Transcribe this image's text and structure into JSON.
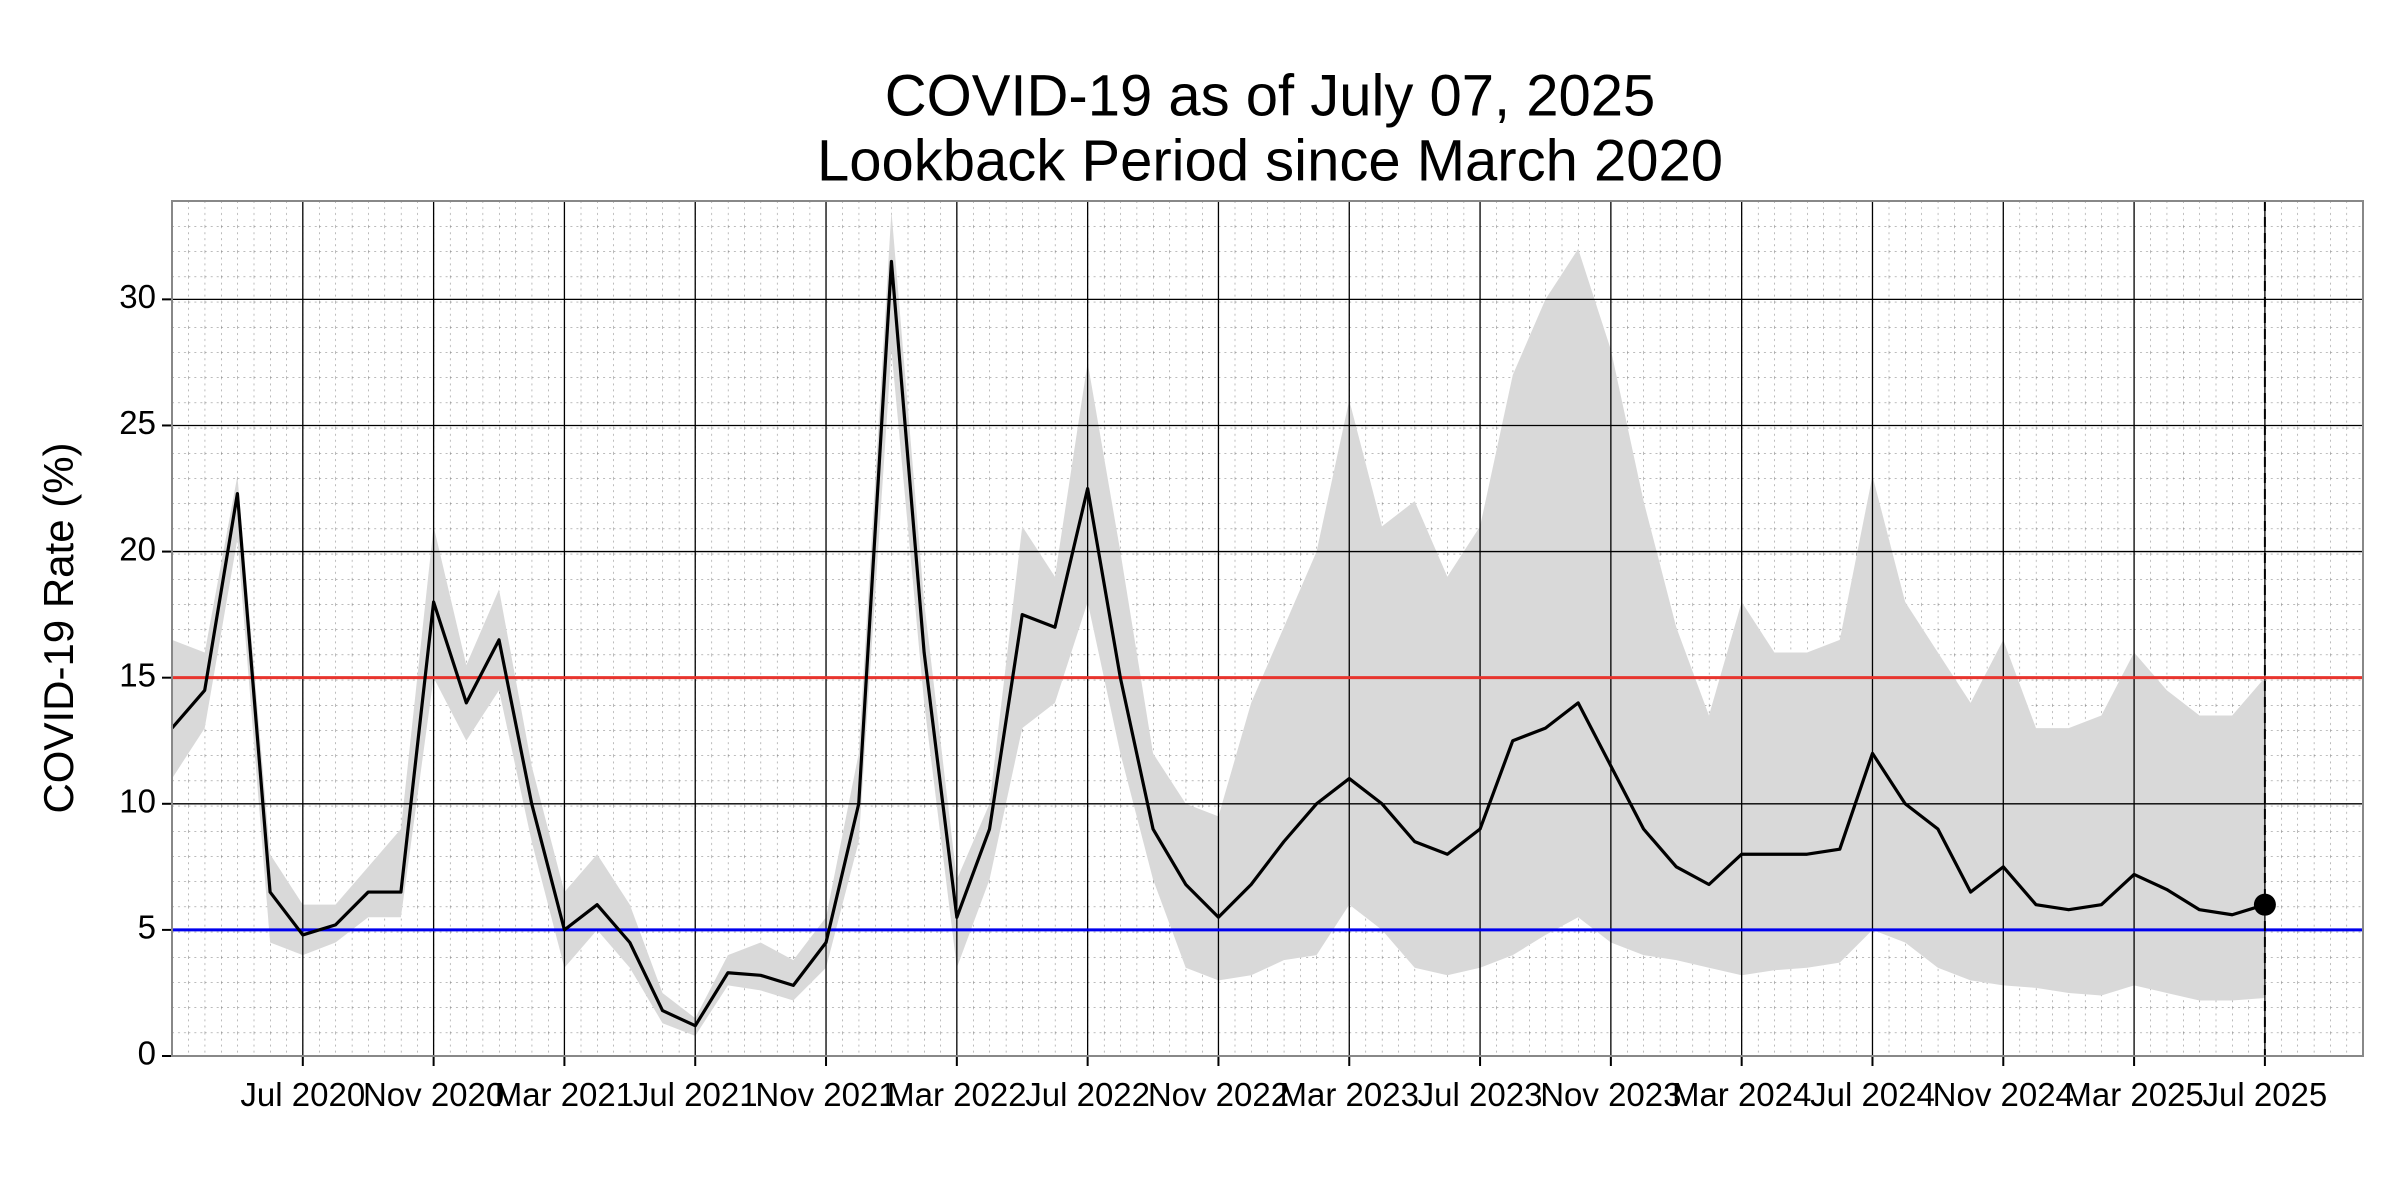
{
  "chart_data": {
    "type": "line",
    "title": "COVID-19 as of July 07, 2025",
    "subtitle": "Lookback Period since March 2020",
    "y_label": "COVID-19 Rate (%)",
    "x": [
      "2020-03",
      "2020-04",
      "2020-05",
      "2020-06",
      "2020-07",
      "2020-08",
      "2020-09",
      "2020-10",
      "2020-11",
      "2020-12",
      "2021-01",
      "2021-02",
      "2021-03",
      "2021-04",
      "2021-05",
      "2021-06",
      "2021-07",
      "2021-08",
      "2021-09",
      "2021-10",
      "2021-11",
      "2021-12",
      "2022-01",
      "2022-02",
      "2022-03",
      "2022-04",
      "2022-05",
      "2022-06",
      "2022-07",
      "2022-08",
      "2022-09",
      "2022-10",
      "2022-11",
      "2022-12",
      "2023-01",
      "2023-02",
      "2023-03",
      "2023-04",
      "2023-05",
      "2023-06",
      "2023-07",
      "2023-08",
      "2023-09",
      "2023-10",
      "2023-11",
      "2023-12",
      "2024-01",
      "2024-02",
      "2024-03",
      "2024-04",
      "2024-05",
      "2024-06",
      "2024-07",
      "2024-08",
      "2024-09",
      "2024-10",
      "2024-11",
      "2024-12",
      "2025-01",
      "2025-02",
      "2025-03",
      "2025-04",
      "2025-05",
      "2025-06",
      "2025-07"
    ],
    "values": [
      13,
      14.5,
      22.3,
      6.5,
      4.8,
      5.2,
      6.5,
      6.5,
      18,
      14,
      16.5,
      10,
      5,
      6,
      4.5,
      1.8,
      1.2,
      3.3,
      3.2,
      2.8,
      4.5,
      10,
      31.5,
      16,
      5.5,
      9,
      17.5,
      17,
      22.5,
      15,
      9,
      6.8,
      5.5,
      6.8,
      8.5,
      10,
      11,
      10,
      8.5,
      8,
      9,
      12.5,
      13,
      14,
      11.5,
      9,
      7.5,
      6.8,
      8,
      8,
      8,
      8.2,
      12,
      10,
      9,
      6.5,
      7.5,
      6,
      5.8,
      6,
      7.2,
      6.6,
      5.8,
      5.6,
      6
    ],
    "color": "#000000",
    "band_lower": [
      11,
      13,
      20.5,
      4.5,
      4,
      4.5,
      5.5,
      5.5,
      15,
      12.5,
      14.5,
      8.5,
      3.5,
      5,
      3.5,
      1.3,
      0.8,
      2.8,
      2.6,
      2.2,
      3.5,
      8.5,
      28,
      14,
      3.5,
      7,
      13,
      14,
      18,
      12,
      7,
      3.5,
      3,
      3.2,
      3.8,
      4,
      6,
      5,
      3.5,
      3.2,
      3.5,
      4,
      4.8,
      5.5,
      4.5,
      4,
      3.8,
      3.5,
      3.2,
      3.4,
      3.5,
      3.7,
      5,
      4.5,
      3.5,
      3,
      2.8,
      2.7,
      2.5,
      2.4,
      2.8,
      2.5,
      2.2,
      2.2,
      2.3
    ],
    "band_upper": [
      16.5,
      16,
      23,
      8,
      6,
      6,
      7.5,
      9,
      21,
      15.5,
      18.5,
      11.5,
      6.5,
      8,
      6,
      2.5,
      1.5,
      4,
      4.5,
      3.8,
      5.5,
      12,
      33.5,
      18,
      7,
      10,
      21,
      19,
      27.5,
      20,
      12,
      10,
      9.5,
      14,
      17,
      20,
      26,
      21,
      22,
      19,
      21,
      27,
      30,
      32,
      28,
      22,
      17,
      13.5,
      18,
      16,
      16,
      16.5,
      23,
      18,
      16,
      14,
      16.5,
      13,
      13,
      13.5,
      16,
      14.5,
      13.5,
      13.5,
      15
    ],
    "band_color": "#d9d9d9",
    "hlines": [
      {
        "value": 15,
        "color": "#e8352e"
      },
      {
        "value": 5,
        "color": "#0000ee"
      }
    ],
    "vline": {
      "x": "2025-07",
      "dashed": true
    },
    "endpoint_marker": true,
    "xlim": [
      "2020-03",
      "2025-10"
    ],
    "xticks": [
      {
        "value": "2020-07",
        "label": "Jul 2020"
      },
      {
        "value": "2020-11",
        "label": "Nov 2020"
      },
      {
        "value": "2021-03",
        "label": "Mar 2021"
      },
      {
        "value": "2021-07",
        "label": "Jul 2021"
      },
      {
        "value": "2021-11",
        "label": "Nov 2021"
      },
      {
        "value": "2022-03",
        "label": "Mar 2022"
      },
      {
        "value": "2022-07",
        "label": "Jul 2022"
      },
      {
        "value": "2022-11",
        "label": "Nov 2022"
      },
      {
        "value": "2023-03",
        "label": "Mar 2023"
      },
      {
        "value": "2023-07",
        "label": "Jul 2023"
      },
      {
        "value": "2023-11",
        "label": "Nov 2023"
      },
      {
        "value": "2024-03",
        "label": "Mar 2024"
      },
      {
        "value": "2024-07",
        "label": "Jul 2024"
      },
      {
        "value": "2024-11",
        "label": "Nov 2024"
      },
      {
        "value": "2025-03",
        "label": "Mar 2025"
      },
      {
        "value": "2025-07",
        "label": "Jul 2025"
      }
    ],
    "ylim": [
      0,
      33.9
    ],
    "yticks": [
      0,
      5,
      10,
      15,
      20,
      25,
      30
    ],
    "grid": true
  }
}
